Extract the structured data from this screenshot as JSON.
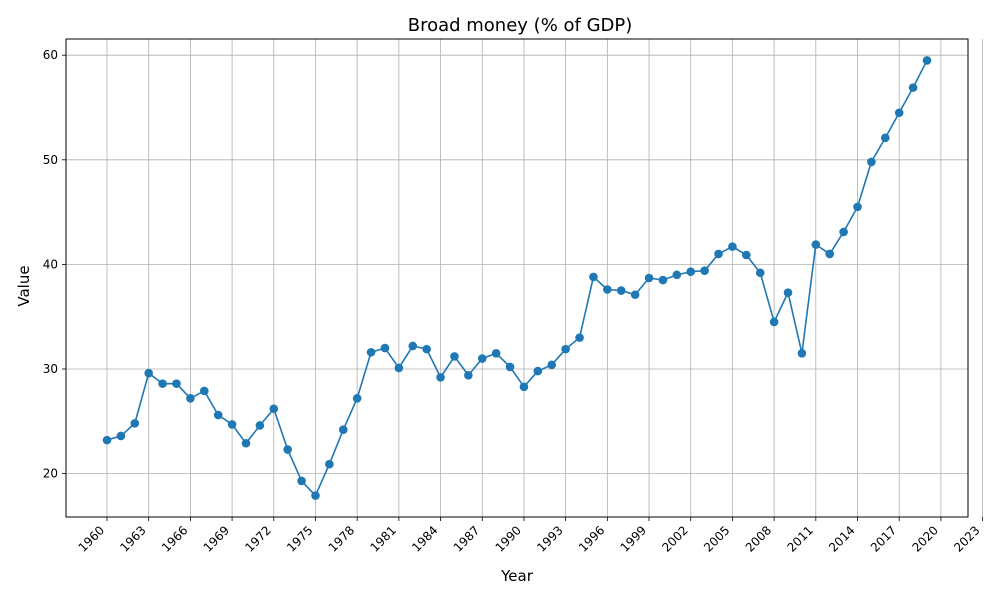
{
  "chart_data": {
    "type": "line",
    "title": "Broad money (% of GDP)",
    "xlabel": "Year",
    "ylabel": "Value",
    "xlim": [
      1957.05,
      2021.95
    ],
    "ylim": [
      15.85,
      61.55
    ],
    "xticks": [
      1960,
      1963,
      1966,
      1969,
      1972,
      1975,
      1978,
      1981,
      1984,
      1987,
      1990,
      1993,
      1996,
      1999,
      2002,
      2005,
      2008,
      2011,
      2014,
      2017,
      2020,
      2023
    ],
    "yticks": [
      20,
      30,
      40,
      50,
      60
    ],
    "grid": true,
    "series_color": "#1f77b4",
    "marker": "circle",
    "series": [
      {
        "x": [
          1960,
          1961,
          1962,
          1963,
          1964,
          1965,
          1966,
          1967,
          1968,
          1969,
          1970,
          1971,
          1972,
          1973,
          1974,
          1975,
          1976,
          1977,
          1978,
          1979,
          1980,
          1981,
          1982,
          1983,
          1984,
          1985,
          1986,
          1987,
          1988,
          1989,
          1990,
          1991,
          1992,
          1993,
          1994,
          1995,
          1996,
          1997,
          1998,
          1999,
          2000,
          2001,
          2002,
          2003,
          2004,
          2005,
          2006,
          2007,
          2008,
          2009,
          2010,
          2011,
          2012,
          2013,
          2014,
          2015,
          2016,
          2017,
          2018,
          2019
        ],
        "values": [
          23.2,
          23.6,
          24.8,
          29.6,
          28.6,
          28.6,
          27.2,
          27.9,
          25.6,
          24.7,
          22.9,
          24.6,
          26.2,
          22.3,
          19.3,
          17.9,
          20.9,
          24.2,
          27.2,
          31.6,
          32.0,
          30.1,
          32.2,
          31.9,
          29.2,
          31.2,
          29.4,
          31.0,
          31.5,
          30.2,
          28.3,
          29.8,
          30.4,
          31.9,
          33.0,
          38.8,
          37.6,
          37.5,
          37.1,
          38.7,
          38.5,
          39.0,
          39.3,
          39.4,
          41.0,
          41.7,
          40.9,
          39.2,
          34.5,
          37.3,
          31.5,
          41.9,
          41.0,
          43.1,
          45.5,
          49.8,
          52.1,
          54.5,
          56.9,
          59.5
        ]
      }
    ]
  }
}
